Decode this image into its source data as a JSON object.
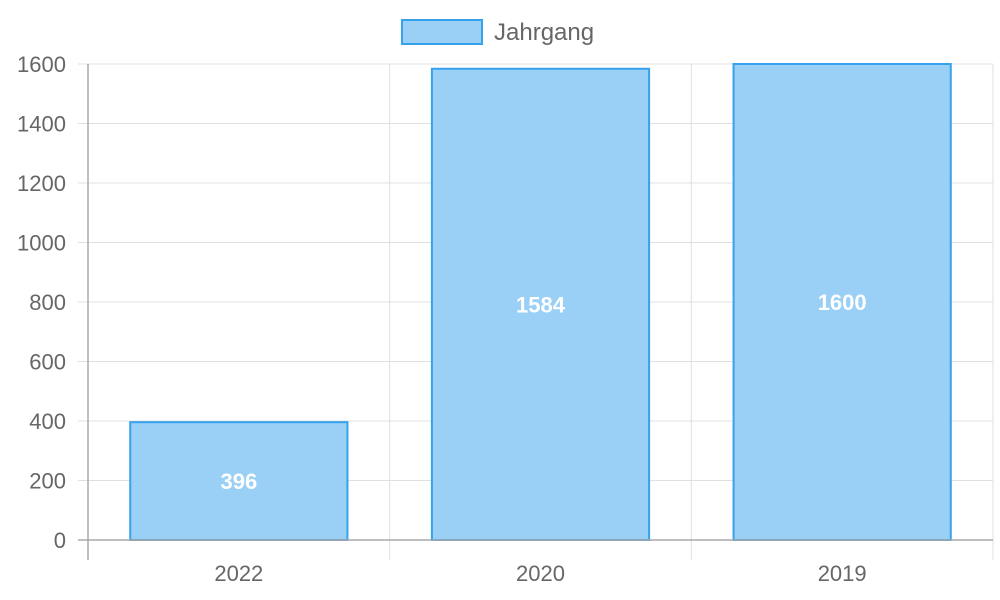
{
  "chart_data": {
    "type": "bar",
    "categories": [
      "2022",
      "2020",
      "2019"
    ],
    "series": [
      {
        "name": "Jahrgang",
        "values": [
          396,
          1584,
          1600
        ]
      }
    ],
    "ylim": [
      0,
      1600
    ],
    "y_ticks": [
      0,
      200,
      400,
      600,
      800,
      1000,
      1200,
      1400,
      1600
    ],
    "grid": true,
    "legend_position": "top-center",
    "data_labels": [
      "396",
      "1584",
      "1600"
    ],
    "colors": {
      "bar_fill": "#9ad0f5",
      "bar_border": "#36a2eb",
      "grid": "#e0e0e0",
      "axis": "#a8a8a8",
      "text": "#666666",
      "data_label": "#ffffff"
    }
  }
}
